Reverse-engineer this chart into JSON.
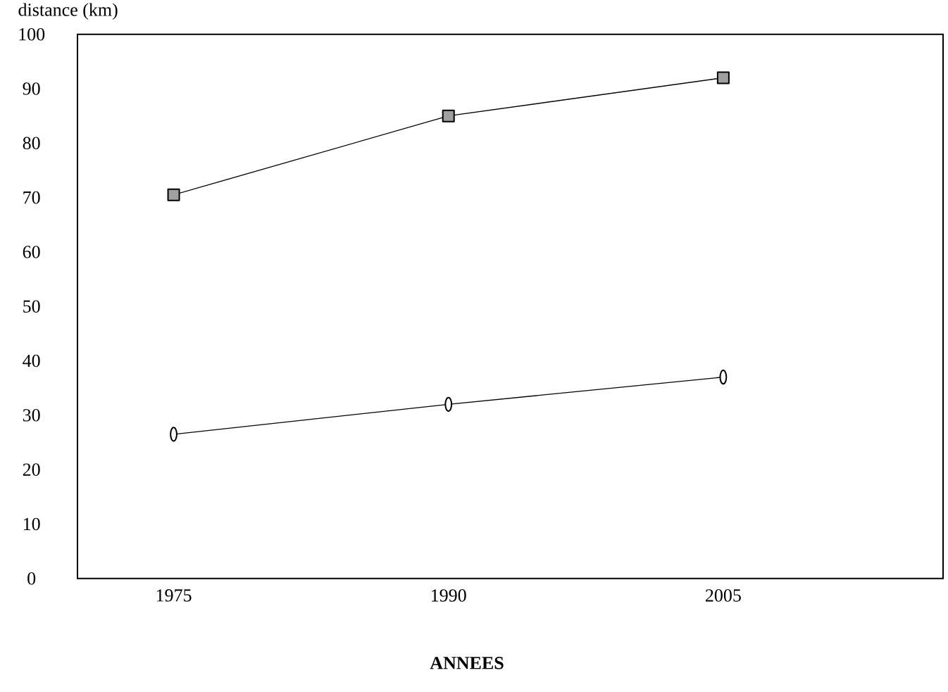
{
  "chart_data": {
    "type": "line",
    "xlabel": "ANNEES",
    "ylabel": "distance (km)",
    "categories": [
      "1975",
      "1990",
      "2005"
    ],
    "series": [
      {
        "color": "#a0a0a0",
        "marker": "square",
        "values": [
          70.5,
          85,
          92
        ]
      },
      {
        "color": "#ffffff",
        "marker": "circle",
        "values": [
          26.5,
          32,
          37
        ]
      }
    ],
    "ylim": [
      0,
      100
    ],
    "yticks": [
      0,
      10,
      20,
      30,
      40,
      50,
      60,
      70,
      80,
      90,
      100
    ],
    "grid": false,
    "line_style": "solid"
  }
}
